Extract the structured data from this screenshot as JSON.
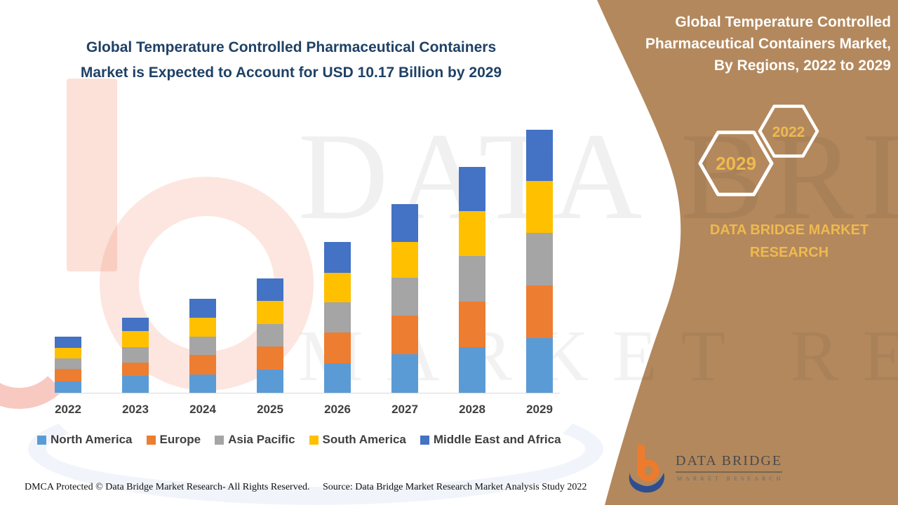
{
  "page": {
    "background": "#FFFFFF",
    "accent_brown": "#B3885D",
    "accent_gold": "#EFB94E",
    "title_navy": "#1F4166"
  },
  "chart": {
    "title": "Global Temperature Controlled Pharmaceutical Containers\nMarket is Expected to Account for USD 10.17 Billion by 2029"
  },
  "chart_data": {
    "type": "bar",
    "stacked": true,
    "title": "Global Temperature Controlled Pharmaceutical Containers Market is Expected to Account for USD 10.17 Billion by 2029",
    "unit": "USD Billion",
    "xlabel": "",
    "ylabel": "",
    "y_axis_visible": false,
    "grid": false,
    "legend_position": "bottom",
    "ylim": [
      0,
      11
    ],
    "categories": [
      "2022",
      "2023",
      "2024",
      "2025",
      "2026",
      "2027",
      "2028",
      "2029"
    ],
    "series": [
      {
        "name": "North America",
        "color": "#5B9BD5",
        "values": [
          0.47,
          0.67,
          0.74,
          0.92,
          1.16,
          1.5,
          1.77,
          2.12
        ]
      },
      {
        "name": "Europe",
        "color": "#ED7D31",
        "values": [
          0.49,
          0.52,
          0.76,
          0.88,
          1.2,
          1.49,
          1.76,
          2.03
        ]
      },
      {
        "name": "Asia Pacific",
        "color": "#A5A5A5",
        "values": [
          0.41,
          0.59,
          0.71,
          0.86,
          1.17,
          1.46,
          1.76,
          2.03
        ]
      },
      {
        "name": "South America",
        "color": "#FFC000",
        "values": [
          0.41,
          0.63,
          0.74,
          0.89,
          1.13,
          1.38,
          1.73,
          2.01
        ]
      },
      {
        "name": "Middle East and Africa",
        "color": "#4472C4",
        "values": [
          0.43,
          0.52,
          0.74,
          0.86,
          1.19,
          1.47,
          1.69,
          1.98
        ]
      }
    ],
    "totals_by_year": [
      2.21,
      2.93,
      3.69,
      4.41,
      5.85,
      7.3,
      8.71,
      10.17
    ],
    "annotations": [
      "USD 10.17 Billion by 2029"
    ]
  },
  "sidebar": {
    "title": "Global Temperature Controlled\nPharmaceutical Containers Market,\nBy Regions, 2022 to 2029",
    "hexagons": [
      {
        "label": "2029"
      },
      {
        "label": "2022"
      }
    ],
    "brand_text": "DATA BRIDGE MARKET RESEARCH",
    "logo": {
      "wordmark": "DATA BRIDGE",
      "subtext": "MARKET RESEARCH"
    }
  },
  "watermark": {
    "line1": "DATA BRIDGE",
    "line2": "MARKET RESEARCH"
  },
  "footer": {
    "left": "DMCA Protected © Data Bridge Market Research- All Rights Reserved.",
    "right": "Source: Data Bridge Market Research Market Analysis Study 2022"
  }
}
